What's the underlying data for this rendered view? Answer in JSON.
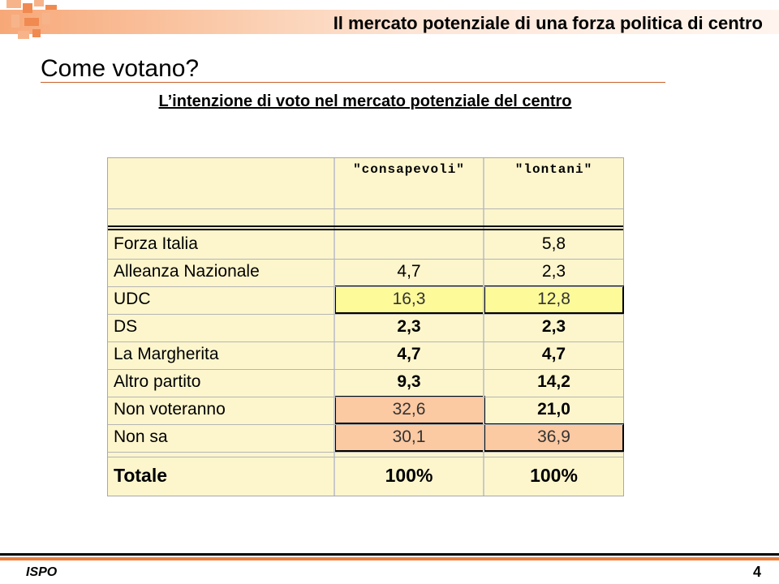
{
  "header": {
    "title": "Il mercato potenziale di una forza politica di centro"
  },
  "heading": "Come votano?",
  "subtitle": "L’intenzione di voto nel mercato potenziale del centro",
  "table": {
    "columns": [
      "\"consapevoli\"",
      "\"lontani\""
    ],
    "rows": [
      {
        "label": "Forza Italia",
        "values": [
          "",
          "5,8"
        ]
      },
      {
        "label": "Alleanza Nazionale",
        "values": [
          "4,7",
          "2,3"
        ]
      },
      {
        "label": "UDC",
        "values": [
          "16,3",
          "12,8"
        ]
      },
      {
        "label": "DS",
        "values": [
          "2,3",
          "2,3"
        ]
      },
      {
        "label": "La Margherita",
        "values": [
          "4,7",
          "4,7"
        ]
      },
      {
        "label": "Altro partito",
        "values": [
          "9,3",
          "14,2"
        ]
      },
      {
        "label": "Non voteranno",
        "values": [
          "32,6",
          "21,0"
        ]
      },
      {
        "label": "Non sa",
        "values": [
          "30,1",
          "36,9"
        ]
      }
    ],
    "total": {
      "label": "Totale",
      "values": [
        "100%",
        "100%"
      ]
    },
    "colors": {
      "background": "#fdf6cd",
      "highlight_yellow": "#fdfa9a",
      "highlight_orange": "#fbc9a2"
    }
  },
  "footer": {
    "left": "ISPO",
    "page_number": "4"
  }
}
